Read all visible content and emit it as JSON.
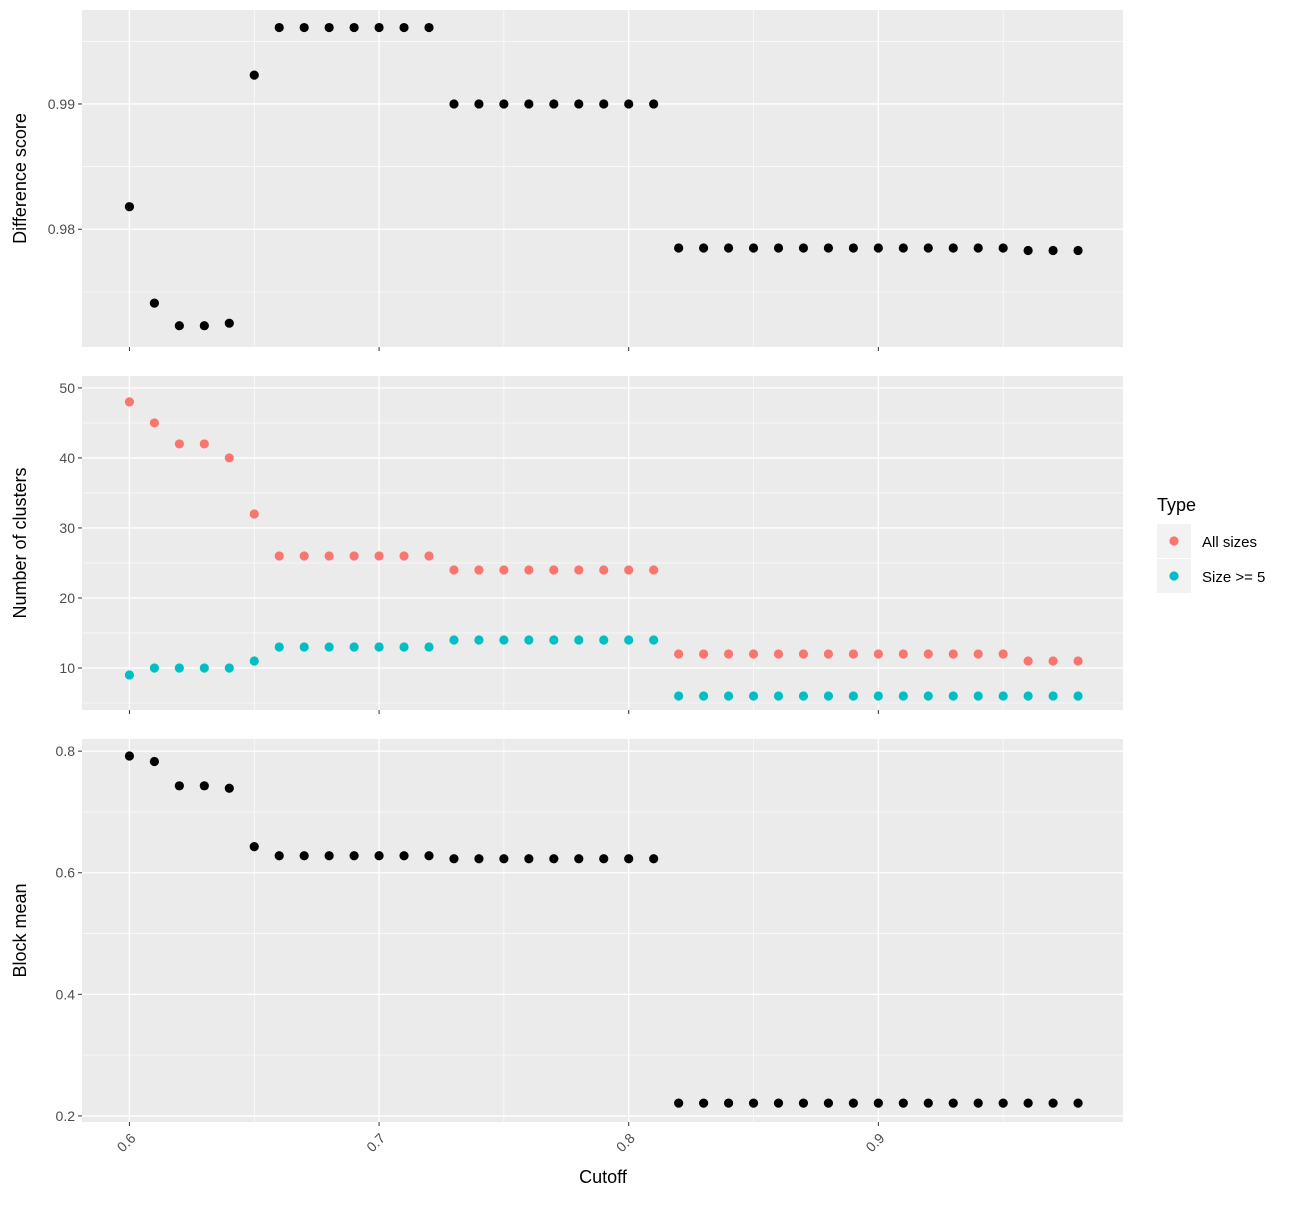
{
  "chart_data": {
    "type": "scatter",
    "xlabel": "Cutoff",
    "x_ticks": [
      "0.6",
      "0.7",
      "0.8",
      "0.9"
    ],
    "xlim": [
      0.581,
      0.998
    ],
    "x": [
      0.6,
      0.61,
      0.62,
      0.63,
      0.64,
      0.65,
      0.66,
      0.67,
      0.68,
      0.69,
      0.7,
      0.71,
      0.72,
      0.73,
      0.74,
      0.75,
      0.76,
      0.77,
      0.78,
      0.79,
      0.8,
      0.81,
      0.82,
      0.83,
      0.84,
      0.85,
      0.86,
      0.87,
      0.88,
      0.89,
      0.9,
      0.91,
      0.92,
      0.93,
      0.94,
      0.95,
      0.96,
      0.97,
      0.98
    ],
    "grid": true,
    "legend": {
      "title": "Type",
      "placement": "right",
      "entries": [
        {
          "label": "All sizes",
          "color": "#F8766D"
        },
        {
          "label": "Size >= 5",
          "color": "#00BFC4"
        }
      ]
    },
    "panels": [
      {
        "ylabel": "Difference score",
        "ylim": [
          0.9706,
          0.9975
        ],
        "y_ticks": [
          "0.98",
          "0.99"
        ],
        "series": [
          {
            "color": "#000000",
            "values": [
              0.9818,
              0.9741,
              0.9723,
              0.9723,
              0.9725,
              0.9923,
              0.9961,
              0.9961,
              0.9961,
              0.9961,
              0.9961,
              0.9961,
              0.9961,
              0.99,
              0.99,
              0.99,
              0.99,
              0.99,
              0.99,
              0.99,
              0.99,
              0.99,
              0.9785,
              0.9785,
              0.9785,
              0.9785,
              0.9785,
              0.9785,
              0.9785,
              0.9785,
              0.9785,
              0.9785,
              0.9785,
              0.9785,
              0.9785,
              0.9785,
              0.9783,
              0.9783,
              0.9783
            ]
          }
        ]
      },
      {
        "ylabel": "Number of clusters",
        "ylim": [
          4,
          51.7
        ],
        "y_ticks": [
          "10",
          "20",
          "30",
          "40",
          "50"
        ],
        "series": [
          {
            "name": "All sizes",
            "color": "#F8766D",
            "values": [
              48,
              45,
              42,
              42,
              40,
              32,
              26,
              26,
              26,
              26,
              26,
              26,
              26,
              24,
              24,
              24,
              24,
              24,
              24,
              24,
              24,
              24,
              12,
              12,
              12,
              12,
              12,
              12,
              12,
              12,
              12,
              12,
              12,
              12,
              12,
              12,
              11,
              11,
              11
            ]
          },
          {
            "name": "Size >= 5",
            "color": "#00BFC4",
            "values": [
              9,
              10,
              10,
              10,
              10,
              11,
              13,
              13,
              13,
              13,
              13,
              13,
              13,
              14,
              14,
              14,
              14,
              14,
              14,
              14,
              14,
              14,
              6,
              6,
              6,
              6,
              6,
              6,
              6,
              6,
              6,
              6,
              6,
              6,
              6,
              6,
              6,
              6,
              6
            ]
          }
        ]
      },
      {
        "ylabel": "Block mean",
        "ylim": [
          0.19,
          0.82
        ],
        "y_ticks": [
          "0.2",
          "0.4",
          "0.6",
          "0.8"
        ],
        "series": [
          {
            "color": "#000000",
            "values": [
              0.792,
              0.783,
              0.743,
              0.743,
              0.739,
              0.643,
              0.628,
              0.628,
              0.628,
              0.628,
              0.628,
              0.628,
              0.628,
              0.623,
              0.623,
              0.623,
              0.623,
              0.623,
              0.623,
              0.623,
              0.623,
              0.623,
              0.221,
              0.221,
              0.221,
              0.221,
              0.221,
              0.221,
              0.221,
              0.221,
              0.221,
              0.221,
              0.221,
              0.221,
              0.221,
              0.221,
              0.221,
              0.221,
              0.221
            ]
          }
        ]
      }
    ]
  }
}
